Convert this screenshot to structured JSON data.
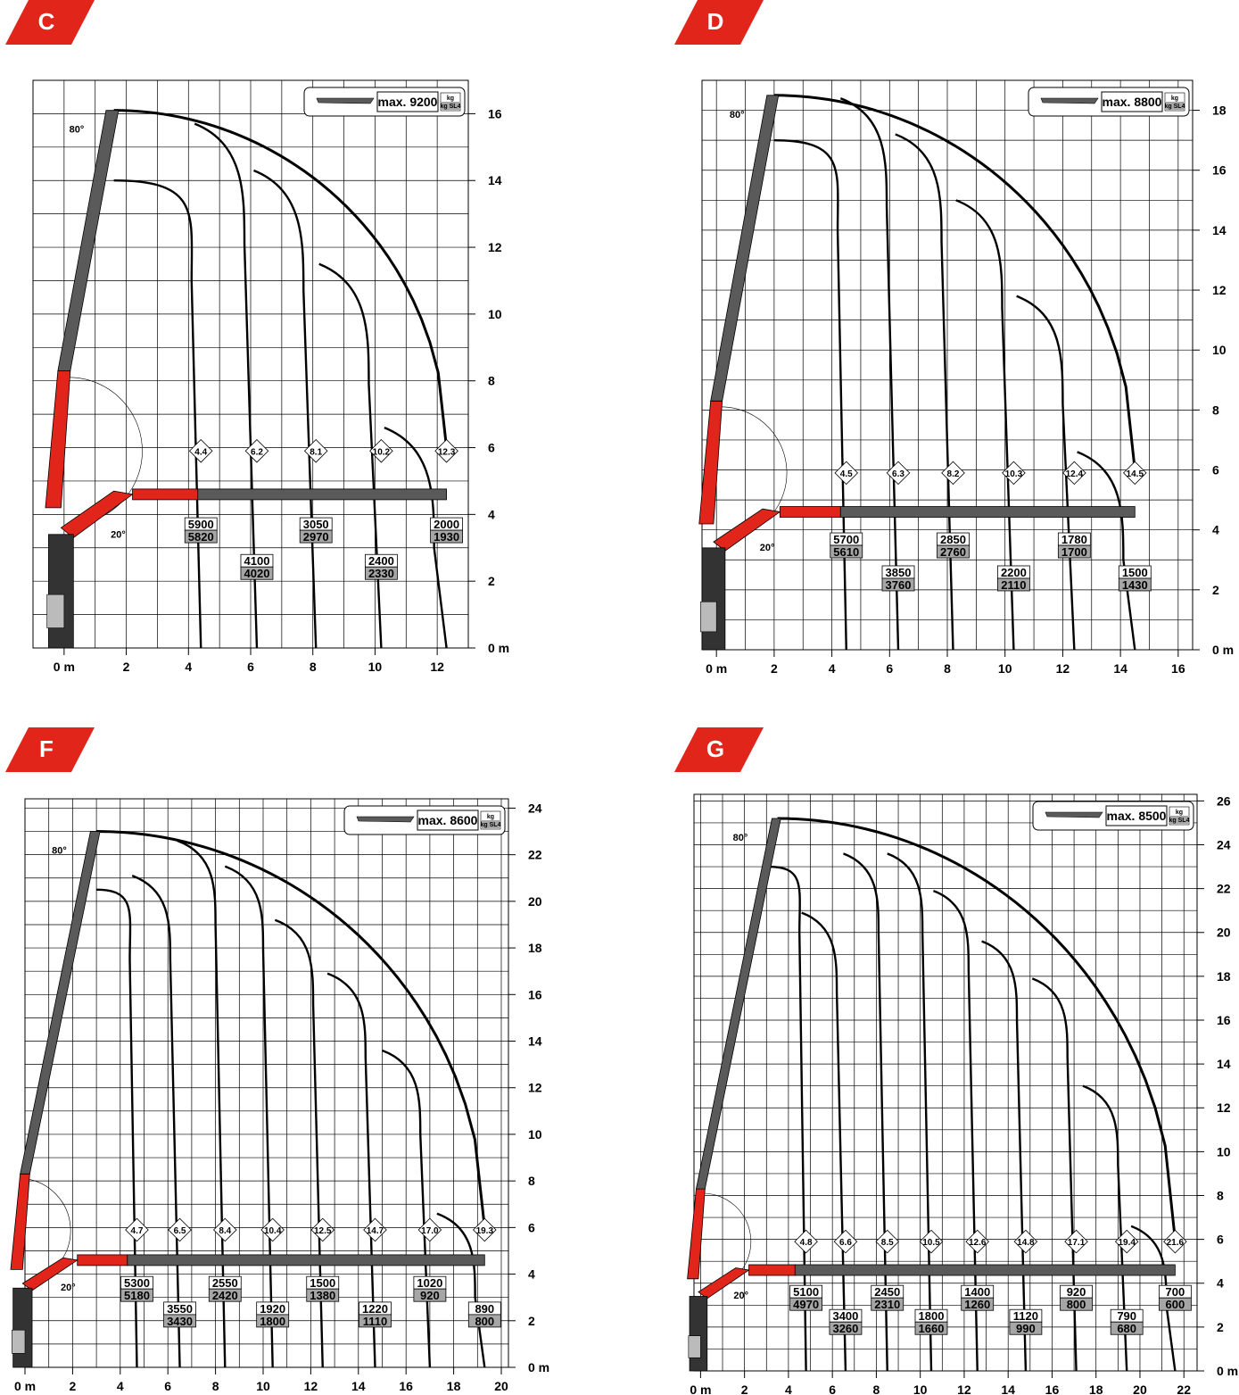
{
  "colors": {
    "accent": "#e1251b",
    "boom": "#5a5a5a",
    "grid": "#000000",
    "label_gray": "#a6a6a6"
  },
  "charts": [
    {
      "id": "C",
      "badge": "C",
      "legend": {
        "max_text": "max. 9200",
        "unit_top": "kg",
        "unit_bottom": "kg SL4"
      },
      "angle_high": "80°",
      "angle_low": "20°",
      "x_ticks": [
        "0 m",
        "2",
        "4",
        "6",
        "8",
        "10",
        "12"
      ],
      "y_ticks": [
        "0 m",
        "2",
        "4",
        "6",
        "8",
        "10",
        "12",
        "14",
        "16"
      ],
      "x_range": [
        -1,
        13
      ],
      "y_range": [
        0,
        17
      ],
      "boom": {
        "tip": [
          1.6,
          16.1
        ],
        "knee": [
          1.6,
          14.0
        ],
        "height": 4.6,
        "length": 12.3
      },
      "outreach": [
        {
          "reach": "4.4",
          "top_y": 14.0,
          "loads": [
            "5900",
            "5820"
          ]
        },
        {
          "reach": "6.2",
          "top_y": 15.1,
          "loads": [
            "4100",
            "4020"
          ]
        },
        {
          "reach": "8.1",
          "top_y": 13.7,
          "loads": [
            "3050",
            "2970"
          ]
        },
        {
          "reach": "10.2",
          "top_y": 10.9,
          "loads": [
            "2400",
            "2330"
          ]
        },
        {
          "reach": "12.3",
          "top_y": 6.0,
          "loads": [
            "2000",
            "1930"
          ]
        }
      ]
    },
    {
      "id": "D",
      "badge": "D",
      "legend": {
        "max_text": "max. 8800",
        "unit_top": "kg",
        "unit_bottom": "kg SL4"
      },
      "angle_high": "80°",
      "angle_low": "20°",
      "x_ticks": [
        "0 m",
        "2",
        "4",
        "6",
        "8",
        "10",
        "12",
        "14",
        "16"
      ],
      "y_ticks": [
        "0 m",
        "2",
        "4",
        "6",
        "8",
        "10",
        "12",
        "14",
        "16",
        "18"
      ],
      "x_range": [
        -0.5,
        16.5
      ],
      "y_range": [
        0,
        19
      ],
      "boom": {
        "tip": [
          2.0,
          18.5
        ],
        "knee": [
          2.0,
          17.0
        ],
        "height": 4.6,
        "length": 14.5
      },
      "outreach": [
        {
          "reach": "4.5",
          "top_y": 17.0,
          "loads": [
            "5700",
            "5610"
          ]
        },
        {
          "reach": "6.3",
          "top_y": 17.8,
          "loads": [
            "3850",
            "3760"
          ]
        },
        {
          "reach": "8.2",
          "top_y": 16.6,
          "loads": [
            "2850",
            "2760"
          ]
        },
        {
          "reach": "10.3",
          "top_y": 14.4,
          "loads": [
            "2200",
            "2110"
          ]
        },
        {
          "reach": "12.4",
          "top_y": 11.2,
          "loads": [
            "1780",
            "1700"
          ]
        },
        {
          "reach": "14.5",
          "top_y": 6.0,
          "loads": [
            "1500",
            "1430"
          ]
        }
      ]
    },
    {
      "id": "F",
      "badge": "F",
      "legend": {
        "max_text": "max. 8600",
        "unit_top": "kg",
        "unit_bottom": "kg SL4"
      },
      "angle_high": "80°",
      "angle_low": "20°",
      "x_ticks": [
        "0 m",
        "2",
        "4",
        "6",
        "8",
        "10",
        "12",
        "14",
        "16",
        "18",
        "20"
      ],
      "y_ticks": [
        "0 m",
        "2",
        "4",
        "6",
        "8",
        "10",
        "12",
        "14",
        "16",
        "18",
        "20",
        "22",
        "24"
      ],
      "x_range": [
        0,
        20.3
      ],
      "y_range": [
        0,
        24.4
      ],
      "boom": {
        "tip": [
          3.0,
          23.0
        ],
        "knee": [
          3.0,
          20.5
        ],
        "height": 4.6,
        "length": 19.3
      },
      "outreach": [
        {
          "reach": "4.7",
          "top_y": 16.5,
          "loads": [
            "5300",
            "5180"
          ]
        },
        {
          "reach": "6.5",
          "top_y": 20.5,
          "loads": [
            "3550",
            "3430"
          ]
        },
        {
          "reach": "8.4",
          "top_y": 22.0,
          "loads": [
            "2550",
            "2420"
          ]
        },
        {
          "reach": "10.4",
          "top_y": 20.9,
          "loads": [
            "1920",
            "1800"
          ]
        },
        {
          "reach": "12.5",
          "top_y": 18.6,
          "loads": [
            "1500",
            "1380"
          ]
        },
        {
          "reach": "14.7",
          "top_y": 16.3,
          "loads": [
            "1220",
            "1110"
          ]
        },
        {
          "reach": "17.0",
          "top_y": 13.0,
          "loads": [
            "1020",
            "920"
          ]
        },
        {
          "reach": "19.3",
          "top_y": 6.0,
          "loads": [
            "890",
            "800"
          ]
        }
      ]
    },
    {
      "id": "G",
      "badge": "G",
      "legend": {
        "max_text": "max. 8500",
        "unit_top": "kg",
        "unit_bottom": "kg SL4"
      },
      "angle_high": "80°",
      "angle_low": "20°",
      "x_ticks": [
        "0 m",
        "2",
        "4",
        "6",
        "8",
        "10",
        "12",
        "14",
        "16",
        "18",
        "20",
        "22"
      ],
      "y_ticks": [
        "0 m",
        "2",
        "4",
        "6",
        "8",
        "10",
        "12",
        "14",
        "16",
        "18",
        "20",
        "22",
        "24",
        "26"
      ],
      "x_range": [
        -0.3,
        22.6
      ],
      "y_range": [
        0,
        26.3
      ],
      "boom": {
        "tip": [
          3.5,
          25.2
        ],
        "knee": [
          3.1,
          23.0
        ],
        "height": 4.6,
        "length": 21.6
      },
      "outreach": [
        {
          "reach": "4.8",
          "top_y": 16.3,
          "loads": [
            "5100",
            "4970"
          ]
        },
        {
          "reach": "6.6",
          "top_y": 20.3,
          "loads": [
            "3400",
            "3260"
          ]
        },
        {
          "reach": "8.5",
          "top_y": 23.0,
          "loads": [
            "2450",
            "2310"
          ]
        },
        {
          "reach": "10.5",
          "top_y": 23.0,
          "loads": [
            "1800",
            "1660"
          ]
        },
        {
          "reach": "12.6",
          "top_y": 21.3,
          "loads": [
            "1400",
            "1260"
          ]
        },
        {
          "reach": "14.8",
          "top_y": 19.0,
          "loads": [
            "1120",
            "990"
          ]
        },
        {
          "reach": "17.1",
          "top_y": 17.3,
          "loads": [
            "920",
            "800"
          ]
        },
        {
          "reach": "19.4",
          "top_y": 12.4,
          "loads": [
            "790",
            "680"
          ]
        },
        {
          "reach": "21.6",
          "top_y": 6.0,
          "loads": [
            "700",
            "600"
          ]
        }
      ]
    }
  ]
}
